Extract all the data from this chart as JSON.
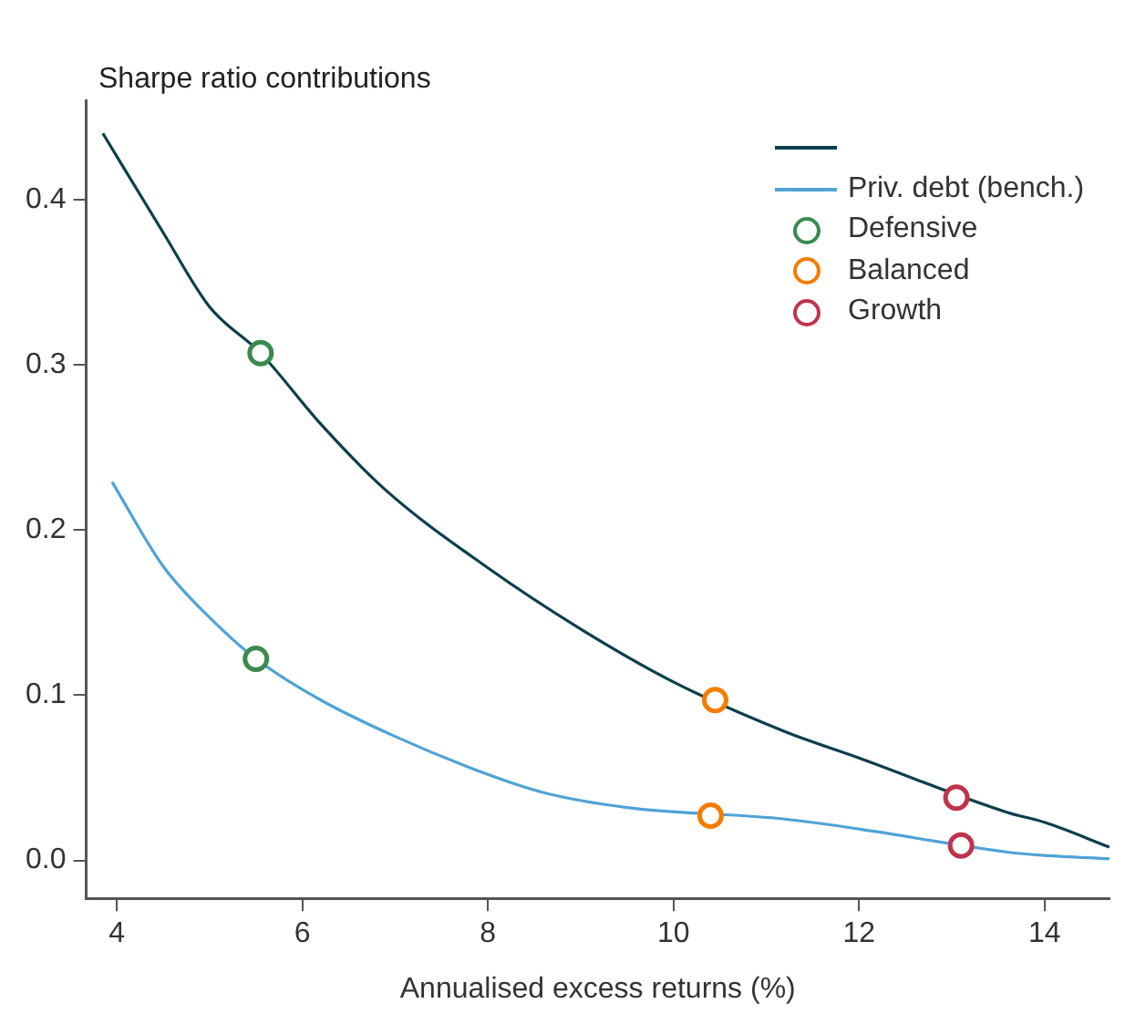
{
  "chart_data": {
    "type": "line",
    "ylabel": "Sharpe ratio contributions",
    "xlabel": "Annualised excess returns (%)",
    "xlim": [
      3.67,
      14.7
    ],
    "xticks": [
      4,
      6,
      8,
      10,
      12,
      14
    ],
    "ylim": [
      -0.023,
      0.46
    ],
    "yticks": [
      {
        "value": 0,
        "label": "0.0"
      },
      {
        "value": 0.1,
        "label": "0.1"
      },
      {
        "value": 0.2,
        "label": "0.2"
      },
      {
        "value": 0.3,
        "label": "0.3"
      },
      {
        "value": 0.4,
        "label": "0.4"
      }
    ],
    "grid": false,
    "legend": "top right",
    "marker": "none",
    "line_style": "solid",
    "series": [
      {
        "color": "#0d3f4c",
        "x": [
          3.85,
          4.5,
          5,
          5.55,
          6.2,
          6.9,
          8,
          9,
          10,
          11.2,
          12,
          13.6,
          14,
          14.7
        ],
        "values": [
          0.44,
          0.38,
          0.335,
          0.307,
          0.264,
          0.224,
          0.177,
          0.14,
          0.108,
          0.078,
          0.062,
          0.029,
          0.023,
          0.008
        ]
      },
      {
        "name": "Priv. debt (bench.)",
        "color": "#4fa3d6",
        "x": [
          3.95,
          4.5,
          5,
          5.5,
          6.2,
          7,
          8,
          8.6,
          9.5,
          11.2,
          12,
          13.6,
          14,
          14.7
        ],
        "values": [
          0.229,
          0.178,
          0.147,
          0.122,
          0.097,
          0.075,
          0.052,
          0.041,
          0.032,
          0.025,
          0.019,
          0.005,
          0.003,
          0.001
        ]
      },
      {
        "name": "Defensive",
        "type": "scatter",
        "marker": "circle",
        "color": "#3a8a4f",
        "x": [
          5.55,
          5.5
        ],
        "values": [
          0.307,
          0.122
        ]
      },
      {
        "name": "Balanced",
        "type": "scatter",
        "marker": "circle",
        "color": "#f57c00",
        "x": [
          10.45,
          10.4
        ],
        "values": [
          0.097,
          0.027
        ]
      },
      {
        "name": "Growth",
        "type": "scatter",
        "marker": "circle",
        "color": "#c0334d",
        "x": [
          13.05,
          13.1
        ],
        "values": [
          0.038,
          0.009
        ]
      }
    ]
  }
}
